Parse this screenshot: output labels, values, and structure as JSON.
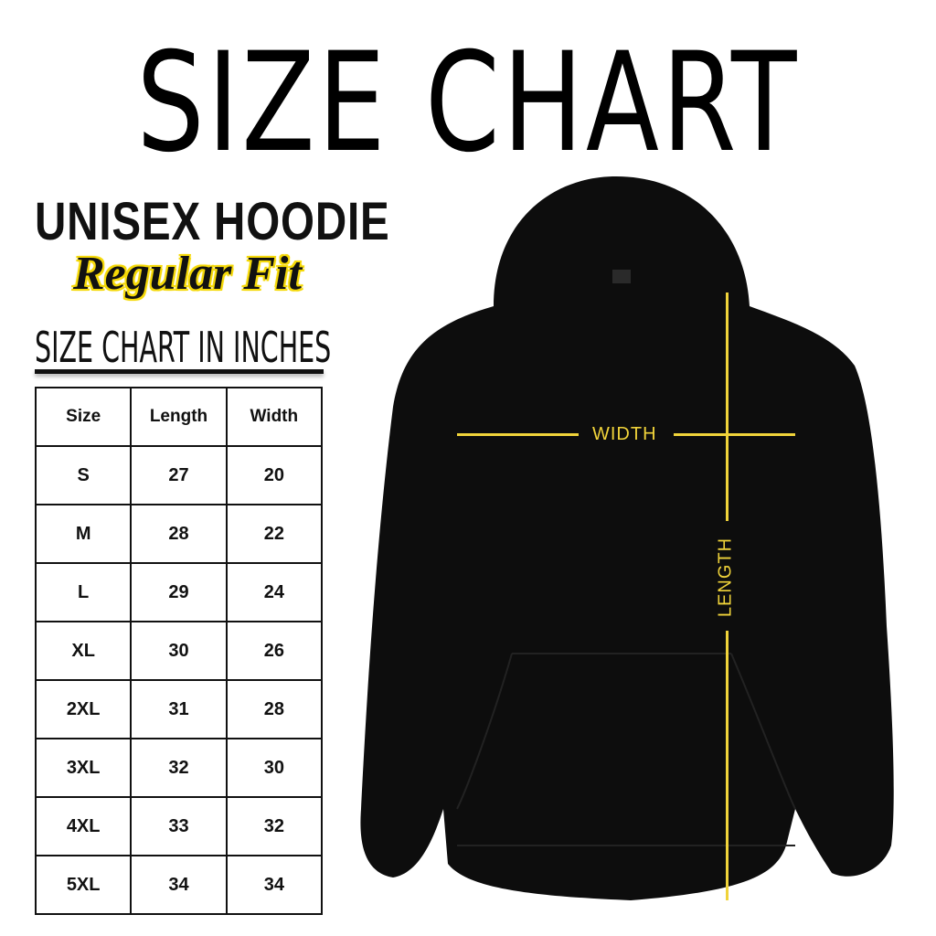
{
  "title": "SIZE CHART",
  "product": "UNISEX HOODIE",
  "fit": "Regular Fit",
  "subtitle": "SIZE CHART IN INCHES",
  "table": {
    "headers": [
      "Size",
      "Length",
      "Width"
    ],
    "rows": [
      [
        "S",
        "27",
        "20"
      ],
      [
        "M",
        "28",
        "22"
      ],
      [
        "L",
        "29",
        "24"
      ],
      [
        "XL",
        "30",
        "26"
      ],
      [
        "2XL",
        "31",
        "28"
      ],
      [
        "3XL",
        "32",
        "30"
      ],
      [
        "4XL",
        "33",
        "32"
      ],
      [
        "5XL",
        "34",
        "34"
      ]
    ]
  },
  "measure_labels": {
    "width": "WIDTH",
    "length": "LENGTH"
  },
  "colors": {
    "garment": "#0d0d0d",
    "measure_line": "#f0d33a",
    "fit_outline": "#f5d90a"
  }
}
